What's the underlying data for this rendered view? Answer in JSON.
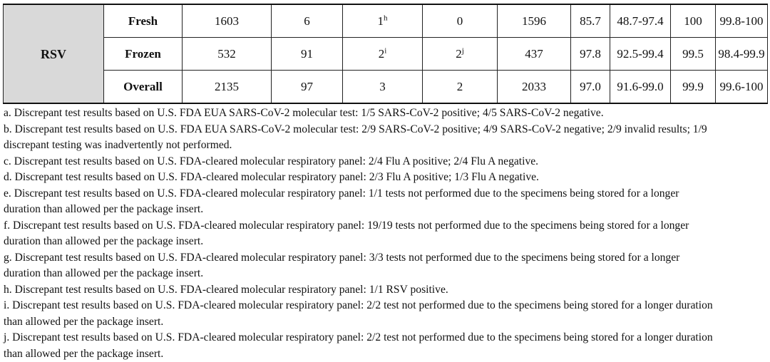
{
  "table": {
    "group": "RSV",
    "rows": [
      {
        "label": "Fresh",
        "cells": [
          "1603",
          "6",
          {
            "text": "1",
            "sup": "h"
          },
          "0",
          "1596",
          "85.7",
          "48.7-97.4",
          "100",
          "99.8-100"
        ]
      },
      {
        "label": "Frozen",
        "cells": [
          "532",
          "91",
          {
            "text": "2",
            "sup": "i"
          },
          {
            "text": "2",
            "sup": "j"
          },
          "437",
          "97.8",
          "92.5-99.4",
          "99.5",
          "98.4-99.9"
        ]
      },
      {
        "label": "Overall",
        "cells": [
          "2135",
          "97",
          "3",
          "2",
          "2033",
          "97.0",
          "91.6-99.0",
          "99.9",
          "99.6-100"
        ]
      }
    ]
  },
  "footnotes": [
    "a. Discrepant test results based on U.S. FDA EUA SARS-CoV-2 molecular test: 1/5 SARS-CoV-2 positive; 4/5 SARS-CoV-2 negative.",
    "b. Discrepant test results based on U.S. FDA EUA SARS-CoV-2 molecular test: 2/9 SARS-CoV-2 positive; 4/9 SARS-CoV-2 negative; 2/9 invalid results; 1/9 discrepant testing was inadvertently not performed.",
    "c. Discrepant test results based on U.S. FDA-cleared molecular respiratory panel: 2/4 Flu A positive; 2/4 Flu A negative.",
    "d. Discrepant test results based on U.S. FDA-cleared molecular respiratory panel: 2/3 Flu A positive; 1/3 Flu A negative.",
    "e. Discrepant test results based on U.S. FDA-cleared molecular respiratory panel: 1/1 tests not performed due to the specimens being stored for a longer duration than allowed per the package insert.",
    "f. Discrepant test results based on U.S. FDA-cleared molecular respiratory panel: 19/19 tests not performed due to the specimens being stored for a longer duration than allowed per the package insert.",
    "g. Discrepant test results based on U.S. FDA-cleared molecular respiratory panel: 3/3 tests not performed due to the specimens being stored for a longer duration than allowed per the package insert.",
    "h. Discrepant test results based on U.S. FDA-cleared molecular respiratory panel: 1/1 RSV positive.",
    "i.  Discrepant test results based on U.S. FDA-cleared molecular respiratory panel: 2/2 test not performed due to the specimens being stored for a longer duration than allowed per the package insert.",
    "j.  Discrepant test results based on U.S. FDA-cleared molecular respiratory panel: 2/2 test not performed due to the specimens being stored for a longer duration than allowed per the package insert."
  ]
}
